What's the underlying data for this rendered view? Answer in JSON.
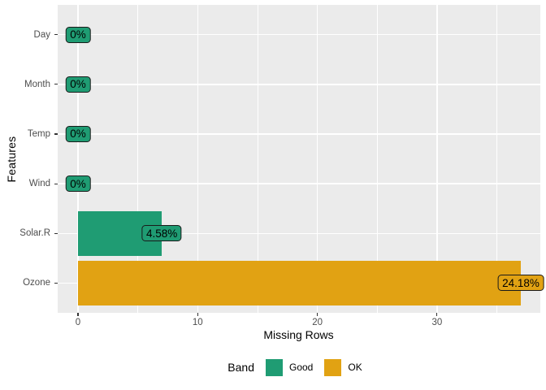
{
  "figure": {
    "background": "#FFFFFF",
    "panel_background": "#EBEBEB",
    "grid_color": "#FFFFFF",
    "tick_color": "#333333",
    "tick_label_color": "#4D4D4D"
  },
  "chart_data": {
    "type": "bar",
    "orientation": "horizontal",
    "title": "",
    "xlabel": "Missing Rows",
    "ylabel": "Features",
    "x_ticks": [
      0,
      10,
      20,
      30
    ],
    "x_minor_ticks": [
      5,
      15,
      25,
      35
    ],
    "xlim": [
      -1.85,
      38.6
    ],
    "grid": true,
    "legend_position": "bottom",
    "categories_top_to_bottom": [
      "Day",
      "Month",
      "Temp",
      "Wind",
      "Solar.R",
      "Ozone"
    ],
    "rows": [
      {
        "feature": "Day",
        "missing_rows": 0,
        "pct_label": "0%",
        "band": "Good"
      },
      {
        "feature": "Month",
        "missing_rows": 0,
        "pct_label": "0%",
        "band": "Good"
      },
      {
        "feature": "Temp",
        "missing_rows": 0,
        "pct_label": "0%",
        "band": "Good"
      },
      {
        "feature": "Wind",
        "missing_rows": 0,
        "pct_label": "0%",
        "band": "Good"
      },
      {
        "feature": "Solar.R",
        "missing_rows": 7,
        "pct_label": "4.58%",
        "band": "Good"
      },
      {
        "feature": "Ozone",
        "missing_rows": 37,
        "pct_label": "24.18%",
        "band": "OK"
      }
    ],
    "band_colors": {
      "Good": "#1F9C73",
      "OK": "#E1A213"
    },
    "legend": {
      "title": "Band",
      "entries": [
        {
          "label": "Good",
          "band": "Good"
        },
        {
          "label": "OK",
          "band": "OK"
        }
      ]
    }
  }
}
